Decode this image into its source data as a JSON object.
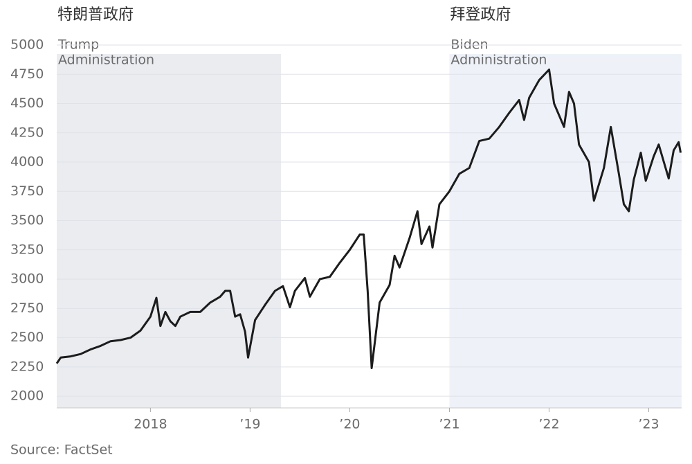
{
  "chart_data": {
    "type": "line",
    "color": "#1c1c1c",
    "source": "Source: FactSet",
    "x": [
      2017.06,
      2017.1,
      2017.2,
      2017.3,
      2017.4,
      2017.5,
      2017.6,
      2017.7,
      2017.8,
      2017.9,
      2018.0,
      2018.06,
      2018.1,
      2018.15,
      2018.2,
      2018.25,
      2018.3,
      2018.4,
      2018.5,
      2018.6,
      2018.7,
      2018.75,
      2018.8,
      2018.85,
      2018.9,
      2018.95,
      2018.98,
      2019.05,
      2019.15,
      2019.25,
      2019.33,
      2019.4,
      2019.45,
      2019.55,
      2019.6,
      2019.7,
      2019.8,
      2019.9,
      2020.0,
      2020.1,
      2020.14,
      2020.18,
      2020.22,
      2020.3,
      2020.4,
      2020.45,
      2020.5,
      2020.6,
      2020.68,
      2020.72,
      2020.8,
      2020.83,
      2020.9,
      2021.0,
      2021.1,
      2021.2,
      2021.3,
      2021.4,
      2021.5,
      2021.6,
      2021.7,
      2021.75,
      2021.8,
      2021.9,
      2022.0,
      2022.05,
      2022.15,
      2022.2,
      2022.25,
      2022.3,
      2022.4,
      2022.45,
      2022.55,
      2022.62,
      2022.7,
      2022.75,
      2022.8,
      2022.85,
      2022.92,
      2022.97,
      2023.05,
      2023.1,
      2023.2,
      2023.25,
      2023.3,
      2023.32
    ],
    "values": [
      2280,
      2330,
      2340,
      2360,
      2400,
      2430,
      2470,
      2480,
      2500,
      2560,
      2680,
      2840,
      2600,
      2720,
      2640,
      2600,
      2680,
      2720,
      2720,
      2800,
      2850,
      2900,
      2900,
      2680,
      2700,
      2550,
      2330,
      2650,
      2780,
      2900,
      2940,
      2760,
      2900,
      3010,
      2850,
      3000,
      3020,
      3140,
      3250,
      3380,
      3380,
      2900,
      2240,
      2800,
      2950,
      3200,
      3100,
      3350,
      3580,
      3300,
      3450,
      3270,
      3640,
      3750,
      3900,
      3950,
      4180,
      4200,
      4300,
      4420,
      4530,
      4360,
      4550,
      4700,
      4790,
      4500,
      4300,
      4600,
      4500,
      4150,
      4000,
      3670,
      3950,
      4300,
      3900,
      3640,
      3580,
      3850,
      4080,
      3840,
      4050,
      4150,
      3860,
      4100,
      4170,
      4080
    ],
    "xlim": [
      2017.06,
      2023.33
    ],
    "xticks": [
      2018,
      {
        "value": 2019,
        "label": "’19"
      },
      {
        "value": 2020,
        "label": "’20"
      },
      {
        "value": 2021,
        "label": "’21"
      },
      {
        "value": 2022,
        "label": "’22"
      },
      {
        "value": 2023,
        "label": "’23"
      }
    ],
    "ylim": [
      1900,
      5000
    ],
    "yticks": [
      2000,
      2250,
      2500,
      2750,
      3000,
      3250,
      3500,
      3750,
      4000,
      4250,
      4500,
      4750,
      5000
    ],
    "grid": true,
    "spans": [
      {
        "start": 2017.06,
        "end": 2019.31,
        "color": "#eaecf0",
        "heading": "特朗普政府",
        "lines": [
          "Trump",
          "Administration"
        ]
      },
      {
        "start": 2021.0,
        "end": 2023.33,
        "color": "#eef2f8",
        "heading": "拜登政府",
        "lines": [
          "Biden",
          "Administration"
        ]
      }
    ]
  }
}
